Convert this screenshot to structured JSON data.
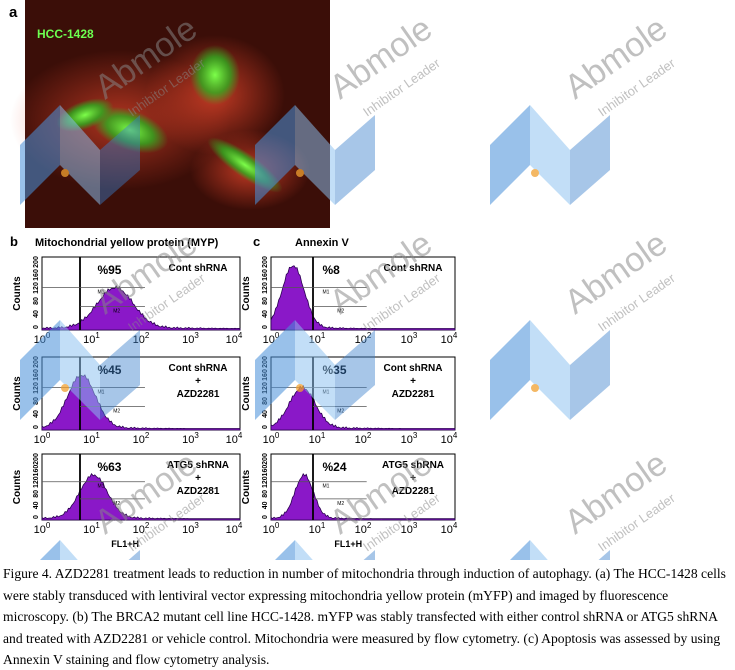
{
  "figure": {
    "panel_a": {
      "label": "a",
      "cell_line": "HCC-1428"
    },
    "axes": {
      "y_axis_label": "Counts",
      "x_axis_label": "FL1+H",
      "y_ticks": [
        "0",
        "40",
        "80",
        "120",
        "160",
        "200"
      ],
      "x_ticks": [
        {
          "base": "10",
          "exponent": "0"
        },
        {
          "base": "10",
          "exponent": "1"
        },
        {
          "base": "10",
          "exponent": "2"
        },
        {
          "base": "10",
          "exponent": "3"
        },
        {
          "base": "10",
          "exponent": "4"
        }
      ],
      "gates": [
        "M1",
        "M2"
      ]
    },
    "panel_b": {
      "label": "b",
      "title": "Mitochondrial yellow protein (MYP)",
      "rows": [
        {
          "percent": "%95",
          "condition": [
            "Cont shRNA"
          ]
        },
        {
          "percent": "%45",
          "condition": [
            "Cont shRNA",
            "+",
            "AZD2281"
          ]
        },
        {
          "percent": "%63",
          "condition": [
            "ATG5 shRNA",
            "+",
            "AZD2281"
          ]
        }
      ]
    },
    "panel_c": {
      "label": "c",
      "title": "Annexin V",
      "rows": [
        {
          "percent": "%8",
          "condition": [
            "Cont shRNA"
          ]
        },
        {
          "percent": "%35",
          "condition": [
            "Cont shRNA",
            "+",
            "AZD2281"
          ]
        },
        {
          "percent": "%24",
          "condition": [
            "ATG5 shRNA",
            "+",
            "AZD2281"
          ]
        }
      ]
    },
    "caption": "Figure 4. AZD2281 treatment leads to reduction in number of mitochondria through induction of autophagy. (a) The HCC-1428 cells were stably transduced with lentiviral vector expressing mitochondria yellow protein (mYFP) and imaged by fluorescence microscopy. (b) The BRCA2 mutant cell line HCC-1428. mYFP was stably transfected with either control shRNA or ATG5 shRNA and treated with AZD2281 or vehicle control. Mitochondria were measured by flow cytometry. (c) Apoptosis was assessed by using Annexin V staining and flow cytometry analysis."
  },
  "watermark": {
    "brand": "Abmole",
    "tagline": "Inhibitor Leader"
  }
}
